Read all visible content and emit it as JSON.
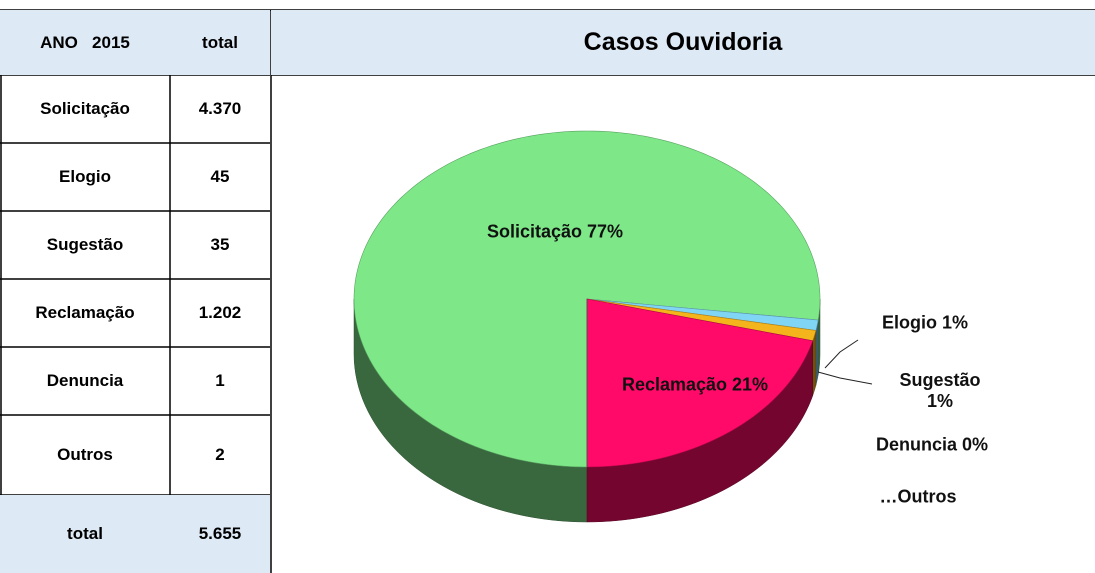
{
  "table": {
    "header": [
      "ANO   2015",
      "total"
    ],
    "rows": [
      [
        "Solicitação",
        "4.370"
      ],
      [
        "Elogio",
        "45"
      ],
      [
        "Sugestão",
        "35"
      ],
      [
        "Reclamação",
        "1.202"
      ],
      [
        "Denuncia",
        "1"
      ],
      [
        "Outros",
        "2"
      ]
    ],
    "footer": [
      "total",
      "5.655"
    ]
  },
  "chart_data": {
    "type": "pie",
    "title": "Casos Ouvidoria",
    "categories": [
      "Solicitação",
      "Elogio",
      "Sugestão",
      "Reclamação",
      "Denuncia",
      "Outros"
    ],
    "values": [
      77,
      1,
      1,
      21,
      0,
      0
    ],
    "value_labels": [
      "Solicitação 77%",
      "Elogio 1%",
      "Sugestão 1%",
      "Reclamação 21%",
      "Denuncia 0%",
      "…Outros"
    ],
    "colors": [
      "#7ee889",
      "#80d4f4",
      "#f4b41c",
      "#ff0a68",
      "#9a9a9a",
      "#666666"
    ]
  }
}
